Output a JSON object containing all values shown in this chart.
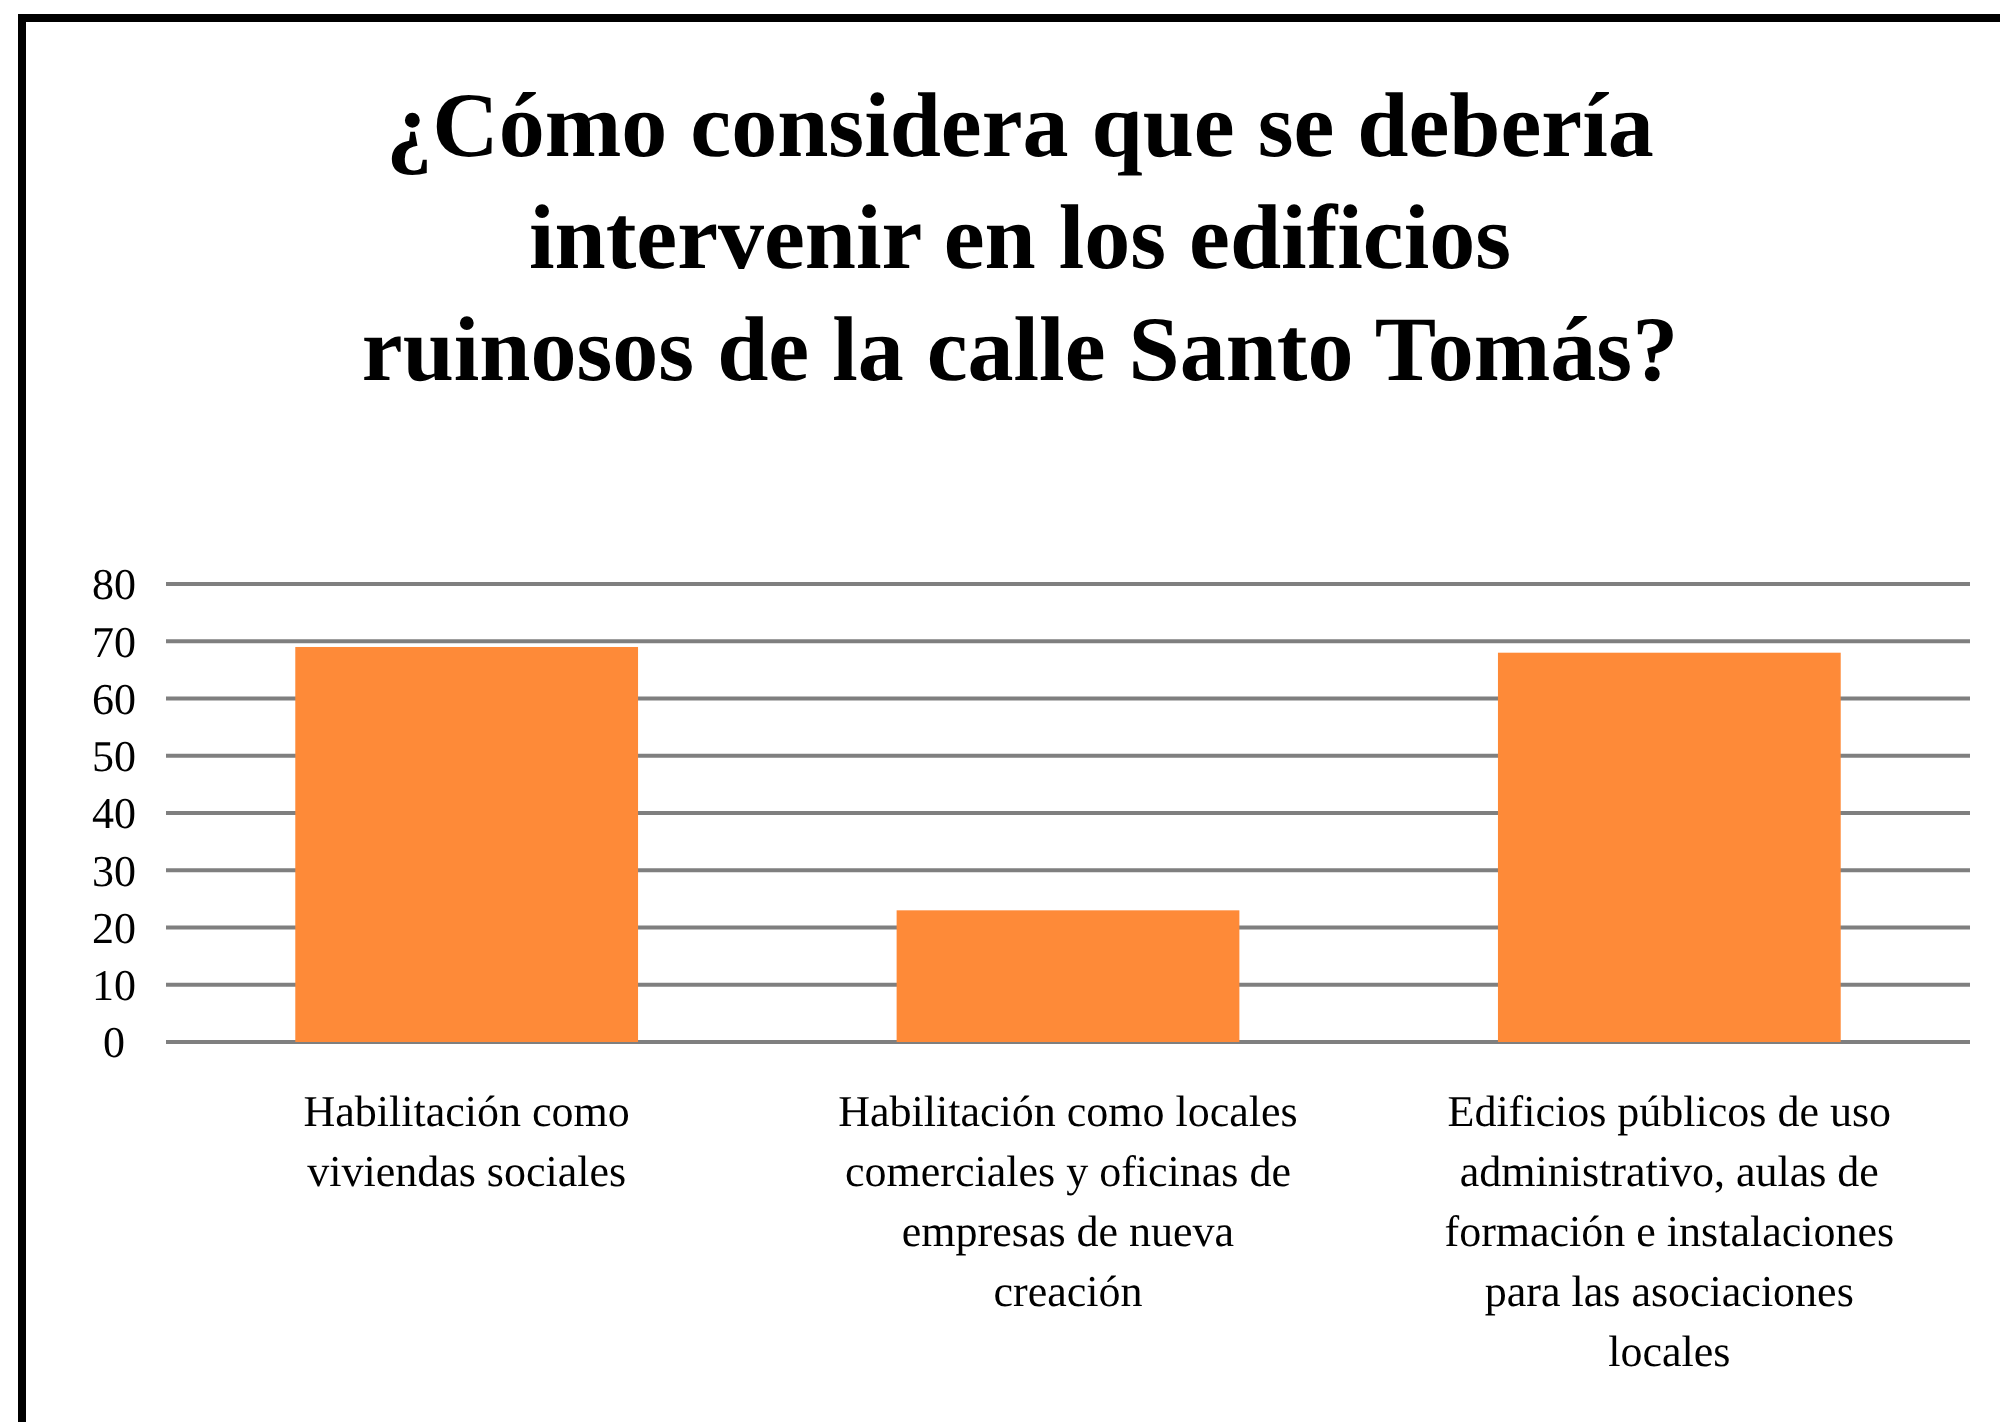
{
  "chart_data": {
    "type": "bar",
    "title": "¿Cómo considera que se debería intervenir en los edificios ruinosos de la calle Santo Tomás?",
    "categories": [
      "Habilitación como viviendas sociales",
      "Habilitación como locales comerciales y oficinas de empresas de nueva creación",
      "Edificios públicos de uso administrativo, aulas de formación e instalaciones para las asociaciones locales"
    ],
    "values": [
      69,
      23,
      68
    ],
    "color": "#fe8a38",
    "ylim": [
      0,
      80
    ],
    "yticks": [
      0,
      10,
      20,
      30,
      40,
      50,
      60,
      70,
      80
    ],
    "grid": "y"
  }
}
